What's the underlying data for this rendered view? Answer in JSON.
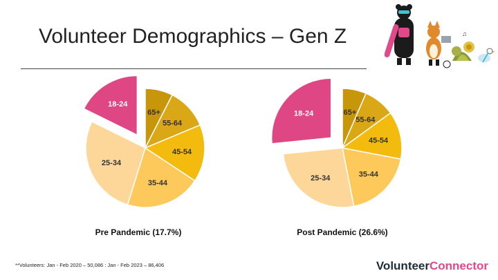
{
  "slide": {
    "title": "Volunteer Demographics – Gen Z",
    "footnote": "**Volunteers: Jan - Feb 2020 – 50,086 : Jan - Feb 2023 – 86,406",
    "brand_part1": "Volunteer",
    "brand_part2": "Connector",
    "brand_colors": {
      "dark": "#1e2c3a",
      "accent": "#e0498a"
    }
  },
  "chart_data": [
    {
      "type": "pie",
      "title": "Pre Pandemic (17.7%)",
      "labels": [
        "65+",
        "55-64",
        "45-54",
        "35-44",
        "25-34",
        "18-24"
      ],
      "values": [
        7.5,
        11.2,
        15.6,
        20.5,
        27.5,
        17.7
      ],
      "colors": [
        "#c8960b",
        "#daa716",
        "#f2bb0e",
        "#fcc95a",
        "#fdd799",
        "#df4684"
      ],
      "exploded_slice": "18-24"
    },
    {
      "type": "pie",
      "title": "Post Pandemic (26.6%)",
      "labels": [
        "65+",
        "55-64",
        "45-54",
        "35-44",
        "25-34",
        "18-24"
      ],
      "values": [
        6.5,
        8.5,
        13.0,
        18.9,
        26.5,
        26.6
      ],
      "colors": [
        "#c8960b",
        "#daa716",
        "#f2bb0e",
        "#fcc95a",
        "#fdd799",
        "#df4684"
      ],
      "exploded_slice": "18-24"
    }
  ]
}
